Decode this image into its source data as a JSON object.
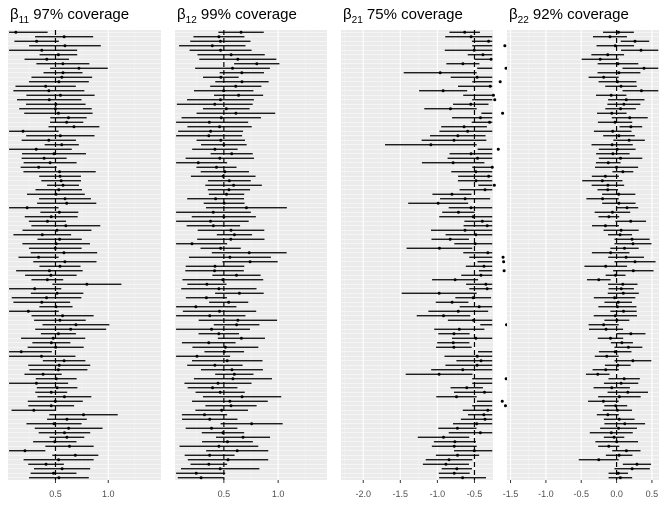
{
  "colors": {
    "panel_background": "#ebebeb",
    "grid_major": "#ffffff",
    "grid_minor": "#f4f4f4",
    "interval": "#000000",
    "tick_text": "#4d4d4d",
    "true_value_line": "#000000"
  },
  "chart_data": [
    {
      "type": "interval",
      "title": {
        "symbol": "β",
        "subscript": "11",
        "text": "97% coverage"
      },
      "coverage_percent": 97,
      "true_value": 0.5,
      "xlim": [
        0.05,
        1.5
      ],
      "xticks": [
        0.5,
        1.0
      ],
      "xtick_labels": [
        "0.5",
        "1.0"
      ],
      "minor_ticks": [
        0.25,
        0.75,
        1.25
      ],
      "n_intervals": 100,
      "interval_half_width_mean": 0.25,
      "estimate_spread": 0.1,
      "seed": 11
    },
    {
      "type": "interval",
      "title": {
        "symbol": "β",
        "subscript": "12",
        "text": "99% coverage"
      },
      "coverage_percent": 99,
      "true_value": 0.5,
      "xlim": [
        0.05,
        1.45
      ],
      "xticks": [
        0.5,
        1.0
      ],
      "xtick_labels": [
        "0.5",
        "1.0"
      ],
      "minor_ticks": [
        0.25,
        0.75,
        1.25
      ],
      "n_intervals": 100,
      "interval_half_width_mean": 0.27,
      "estimate_spread": 0.12,
      "seed": 12
    },
    {
      "type": "interval",
      "title": {
        "symbol": "β",
        "subscript": "21",
        "text": "75% coverage"
      },
      "coverage_percent": 75,
      "true_value": -0.5,
      "xlim": [
        -2.3,
        -0.25
      ],
      "xticks": [
        -2.0,
        -1.5,
        -1.0,
        -0.5
      ],
      "xtick_labels": [
        "-2.0",
        "-1.5",
        "-1.0",
        "-0.5"
      ],
      "minor_ticks": [
        -2.25,
        -1.75,
        -1.25,
        -0.75
      ],
      "n_intervals": 100,
      "interval_half_width_mean": 0.33,
      "estimate_spread": 0.22,
      "seed": 21
    },
    {
      "type": "interval",
      "title": {
        "symbol": "β",
        "subscript": "22",
        "text": "92% coverage"
      },
      "coverage_percent": 92,
      "true_value": 0.0,
      "xlim": [
        -1.55,
        0.6
      ],
      "xticks": [
        -1.5,
        -1.0,
        -0.5,
        0.0,
        0.5
      ],
      "xtick_labels": [
        "-1.5",
        "-1.0",
        "-0.5",
        "0.0",
        "0.5"
      ],
      "minor_ticks": [
        -1.25,
        -0.75,
        -0.25,
        0.25
      ],
      "n_intervals": 100,
      "interval_half_width_mean": 0.22,
      "estimate_spread": 0.12,
      "seed": 22
    }
  ]
}
